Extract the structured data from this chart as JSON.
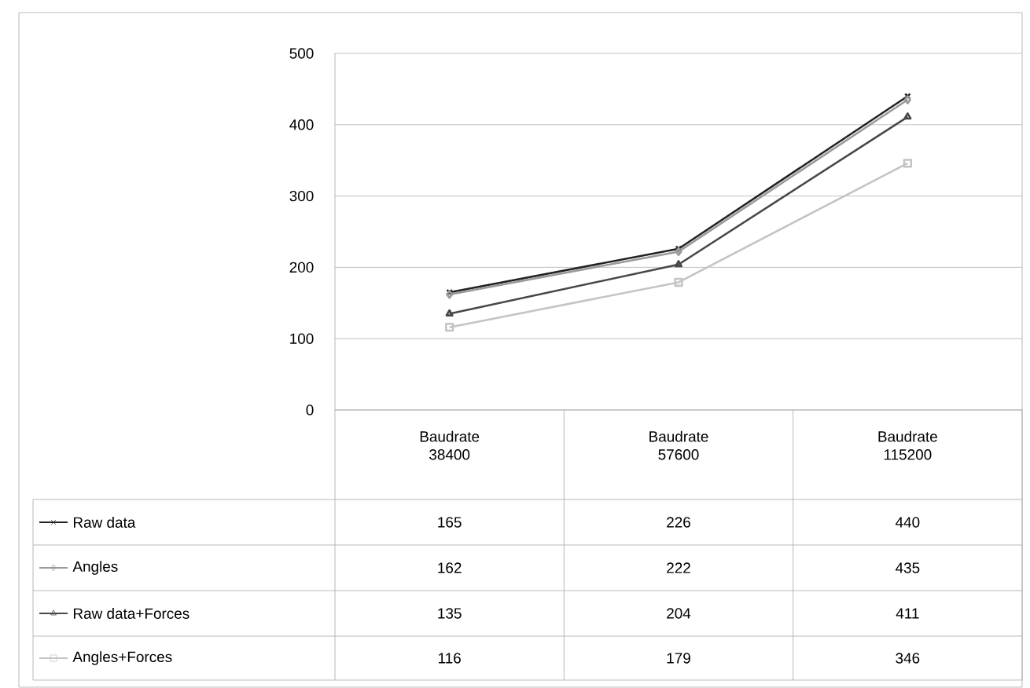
{
  "chart_data": {
    "type": "line",
    "categories": [
      "Baudrate 38400",
      "Baudrate 57600",
      "Baudrate 115200"
    ],
    "series": [
      {
        "name": "Raw data",
        "color": "#222222",
        "marker": "cross",
        "values": [
          165,
          226,
          440
        ]
      },
      {
        "name": "Angles",
        "color": "#9a9a9a",
        "marker": "diamond",
        "values": [
          162,
          222,
          435
        ]
      },
      {
        "name": "Raw data+Forces",
        "color": "#484848",
        "marker": "triangle",
        "values": [
          135,
          204,
          411
        ]
      },
      {
        "name": "Angles+Forces",
        "color": "#c4c4c4",
        "marker": "square",
        "values": [
          116,
          179,
          346
        ]
      }
    ],
    "ylim": [
      0,
      500
    ],
    "yticks": [
      0,
      100,
      200,
      300,
      400,
      500
    ],
    "grid": "y",
    "legend": "bottom left",
    "data_labels": true,
    "line_style": "solid"
  }
}
